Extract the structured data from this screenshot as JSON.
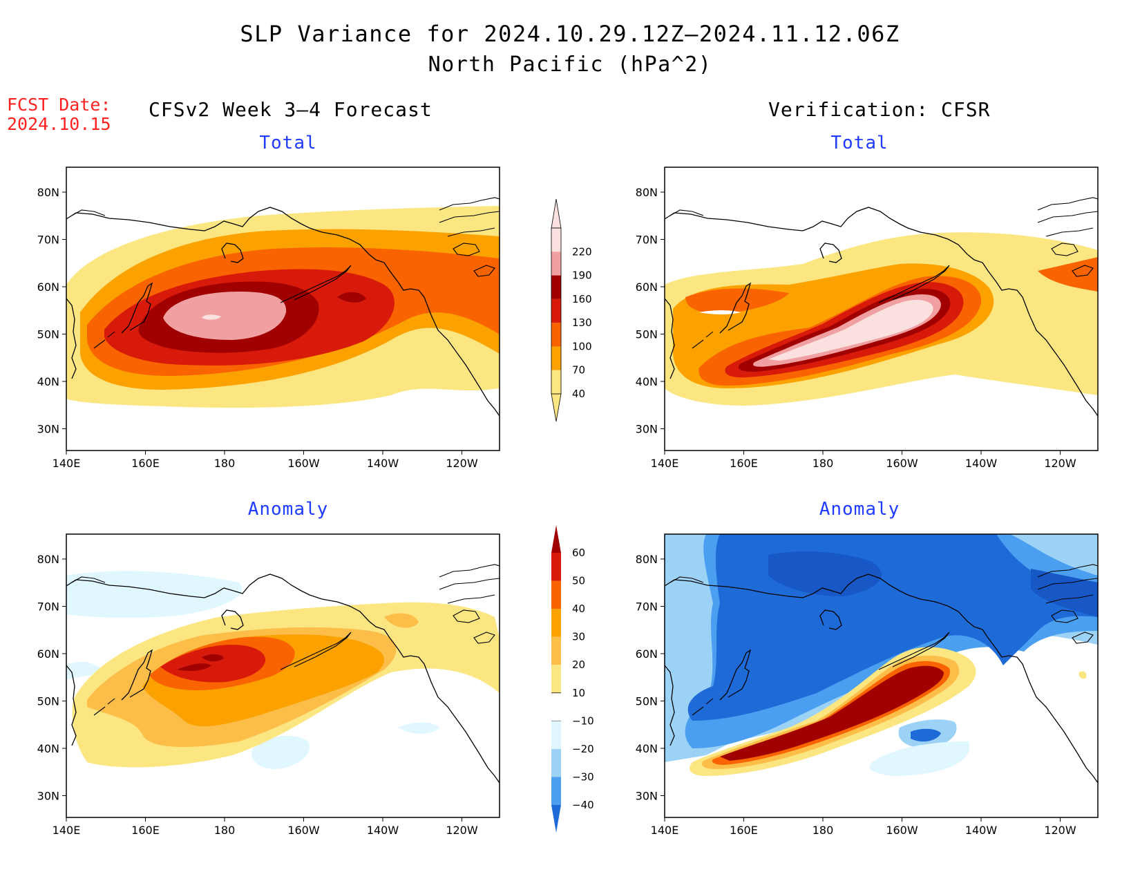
{
  "header": {
    "title": "SLP Variance for 2024.10.29.12Z–2024.11.12.06Z",
    "subtitle": "North Pacific (hPa^2)"
  },
  "fcst": {
    "label": "FCST Date:",
    "date": "2024.10.15"
  },
  "left_column_title": "CFSv2 Week 3–4 Forecast",
  "right_column_title": "Verification: CFSR",
  "panels": {
    "top_left": {
      "label": "Total"
    },
    "top_right": {
      "label": "Total"
    },
    "bottom_left": {
      "label": "Anomaly"
    },
    "bottom_right": {
      "label": "Anomaly"
    }
  },
  "axes": {
    "lon_labels": [
      "140E",
      "160E",
      "180",
      "160W",
      "140W",
      "120W"
    ],
    "lat_labels": [
      "80N",
      "70N",
      "60N",
      "50N",
      "40N",
      "30N"
    ]
  },
  "colorbars": {
    "total": {
      "labels": [
        "220",
        "190",
        "160",
        "130",
        "100",
        "70",
        "40"
      ],
      "colors": [
        "#fbe0e0",
        "#f0a0a0",
        "#a00000",
        "#d81a0a",
        "#fa6400",
        "#fca200",
        "#fce682"
      ]
    },
    "anomaly": {
      "labels": [
        "60",
        "50",
        "40",
        "30",
        "20",
        "10",
        "−10",
        "−20",
        "−30",
        "−40"
      ],
      "colors": [
        "#a00000",
        "#d81a0a",
        "#fa6400",
        "#fca200",
        "#fcbe48",
        "#fce682",
        "#ffffff",
        "#e0f7ff",
        "#9dd2f7",
        "#4a9ff0",
        "#1e6bd8"
      ]
    }
  },
  "palette": {
    "title_blue": "#1f3bff",
    "fcst_red": "#ff2020"
  }
}
